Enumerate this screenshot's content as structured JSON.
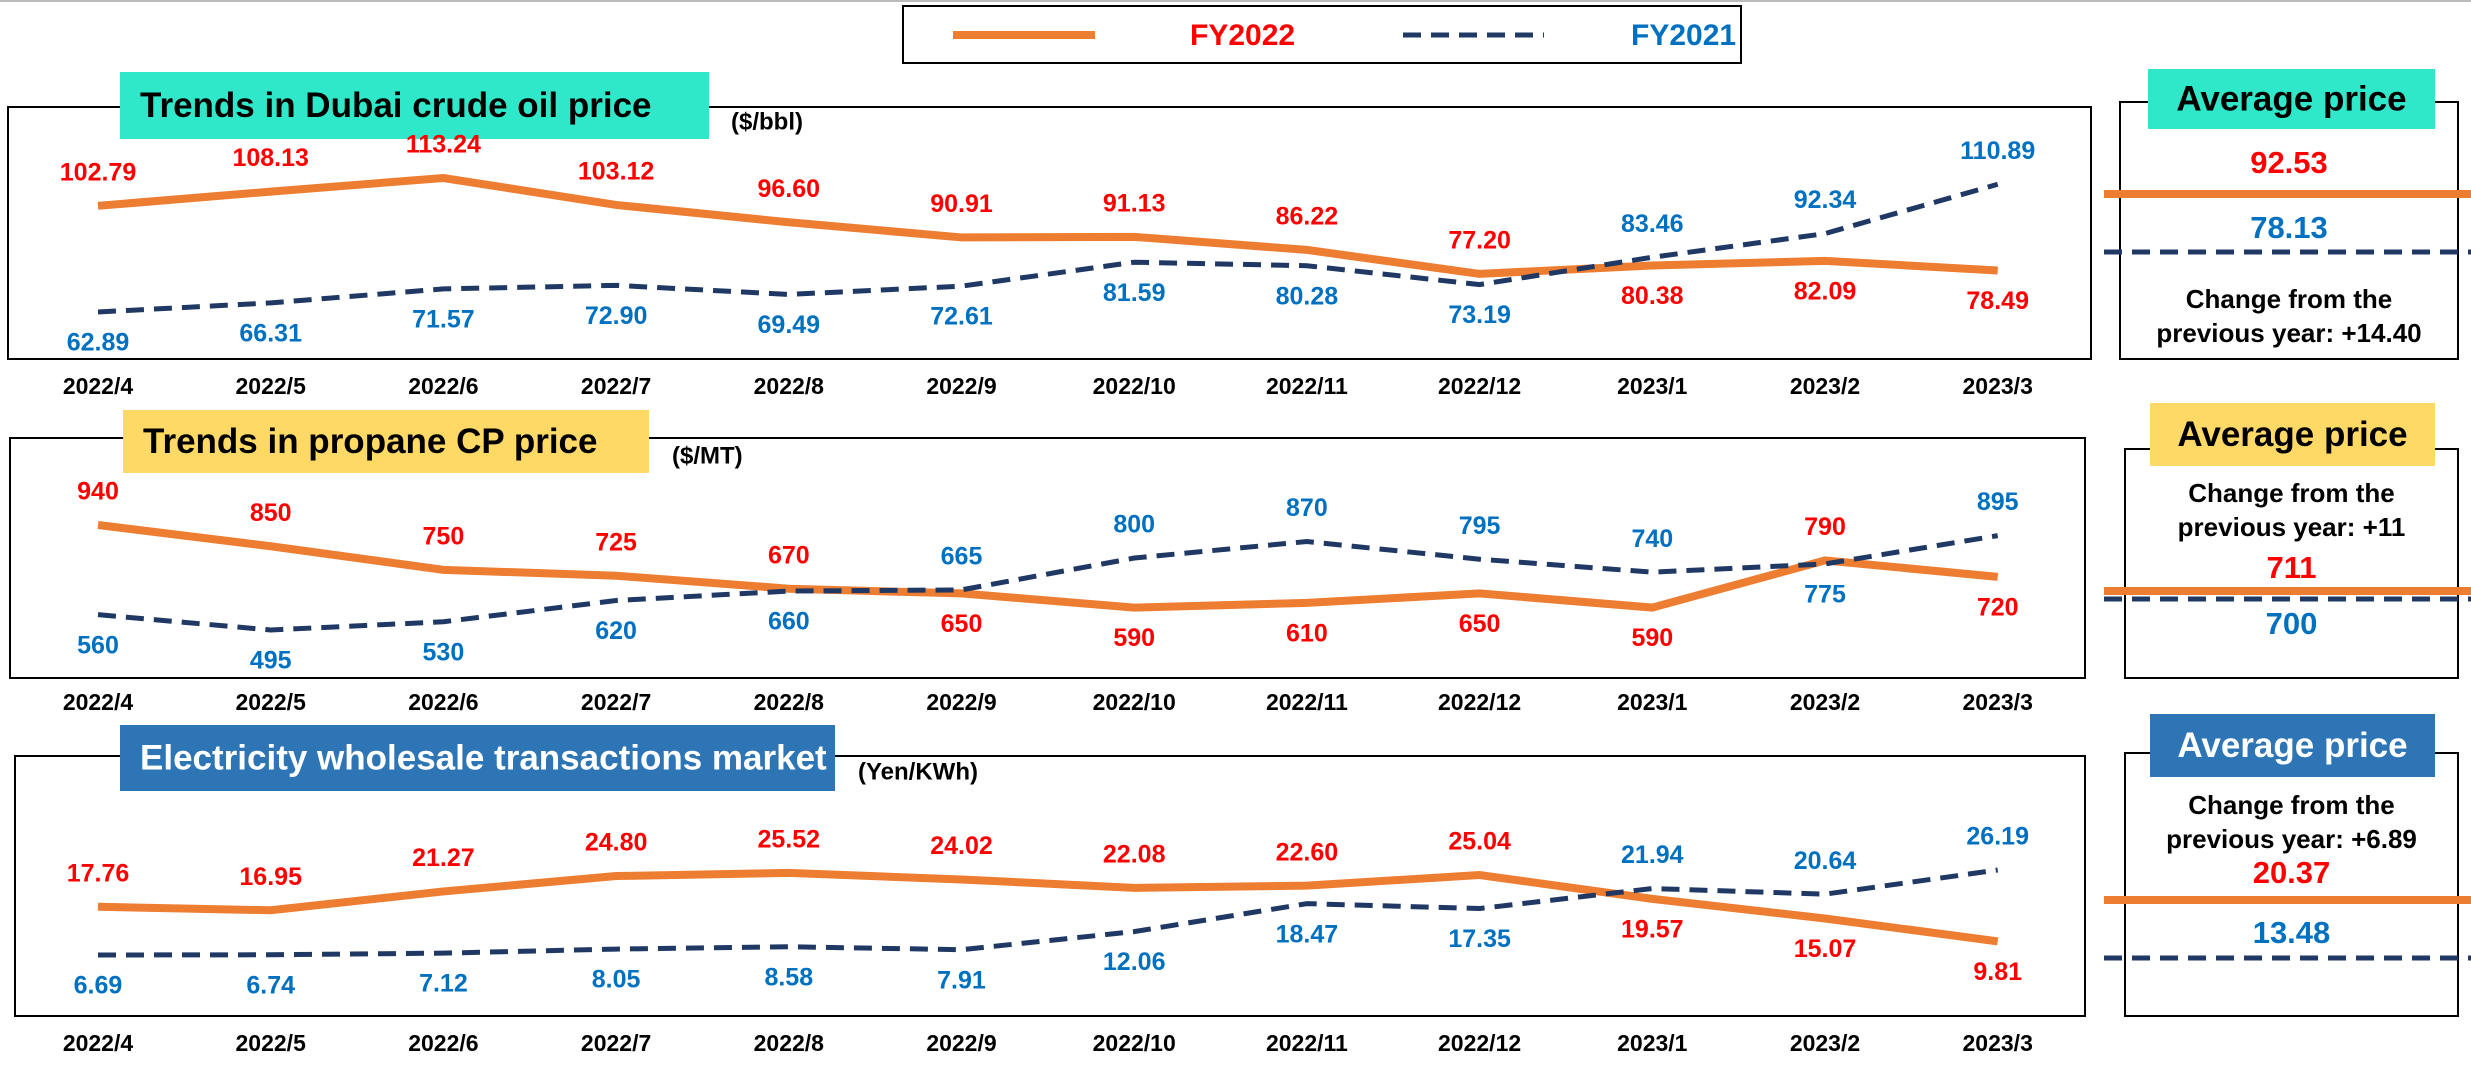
{
  "legend": [
    {
      "name": "FY2022",
      "color": "#ed7d31",
      "text_color": "#ff0000",
      "line_style": "solid"
    },
    {
      "name": "FY2021",
      "color": "#1f3864",
      "text_color": "#0070c0",
      "line_style": "dashed"
    }
  ],
  "chart_data": [
    {
      "type": "line",
      "title": "Trends in Dubai crude oil price",
      "title_background": "#2fe8c9",
      "title_color": "#000000",
      "unit": "($/bbl)",
      "categories": [
        "2022/4",
        "2022/5",
        "2022/6",
        "2022/7",
        "2022/8",
        "2022/9",
        "2022/10",
        "2022/11",
        "2022/12",
        "2023/1",
        "2023/2",
        "2023/3"
      ],
      "series": [
        {
          "values": [
            102.79,
            108.13,
            113.24,
            103.12,
            96.6,
            90.91,
            91.13,
            86.22,
            77.2,
            80.38,
            82.09,
            78.49
          ],
          "value_labels": [
            "102.79",
            "108.13",
            "113.24",
            "103.12",
            "96.60",
            "90.91",
            "91.13",
            "86.22",
            "77.20",
            "80.38",
            "82.09",
            "78.49"
          ]
        },
        {
          "values": [
            62.89,
            66.31,
            71.57,
            72.9,
            69.49,
            72.61,
            81.59,
            80.28,
            73.19,
            83.46,
            92.34,
            110.89
          ],
          "value_labels": [
            "62.89",
            "66.31",
            "71.57",
            "72.90",
            "69.49",
            "72.61",
            "81.59",
            "80.28",
            "73.19",
            "83.46",
            "92.34",
            "110.89"
          ]
        }
      ],
      "average": {
        "title": "Average price",
        "values": [
          92.53,
          78.13
        ],
        "change": "Change from the previous year: +14.40"
      }
    },
    {
      "type": "line",
      "title": "Trends in propane CP price",
      "title_background": "#ffd966",
      "title_color": "#000000",
      "unit": "($/MT)",
      "categories": [
        "2022/4",
        "2022/5",
        "2022/6",
        "2022/7",
        "2022/8",
        "2022/9",
        "2022/10",
        "2022/11",
        "2022/12",
        "2023/1",
        "2023/2",
        "2023/3"
      ],
      "series": [
        {
          "values": [
            940,
            850,
            750,
            725,
            670,
            650,
            590,
            610,
            650,
            590,
            790,
            720
          ]
        },
        {
          "values": [
            560,
            495,
            530,
            620,
            660,
            665,
            800,
            870,
            795,
            740,
            775,
            895
          ]
        }
      ],
      "average": {
        "title": "Average price",
        "values": [
          711,
          700
        ],
        "change": "Change from the previous year: +11"
      }
    },
    {
      "type": "line",
      "title": "Electricity wholesale transactions market",
      "title_background": "#2e75b6",
      "title_color": "#ffffff",
      "unit": "(Yen/KWh)",
      "categories": [
        "2022/4",
        "2022/5",
        "2022/6",
        "2022/7",
        "2022/8",
        "2022/9",
        "2022/10",
        "2022/11",
        "2022/12",
        "2023/1",
        "2023/2",
        "2023/3"
      ],
      "series": [
        {
          "values": [
            17.76,
            16.95,
            21.27,
            24.8,
            25.52,
            24.02,
            22.08,
            22.6,
            25.04,
            19.57,
            15.07,
            9.81
          ],
          "value_labels": [
            "17.76",
            "16.95",
            "21.27",
            "24.80",
            "25.52",
            "24.02",
            "22.08",
            "22.60",
            "25.04",
            "19.57",
            "15.07",
            "9.81"
          ]
        },
        {
          "values": [
            6.69,
            6.74,
            7.12,
            8.05,
            8.58,
            7.91,
            12.06,
            18.47,
            17.35,
            21.94,
            20.64,
            26.19
          ],
          "value_labels": [
            "6.69",
            "6.74",
            "7.12",
            "8.05",
            "8.58",
            "7.91",
            "12.06",
            "18.47",
            "17.35",
            "21.94",
            "20.64",
            "26.19"
          ]
        }
      ],
      "average": {
        "title": "Average price",
        "values": [
          20.37,
          13.48
        ],
        "change": "Change from the previous year: +6.89"
      }
    }
  ]
}
